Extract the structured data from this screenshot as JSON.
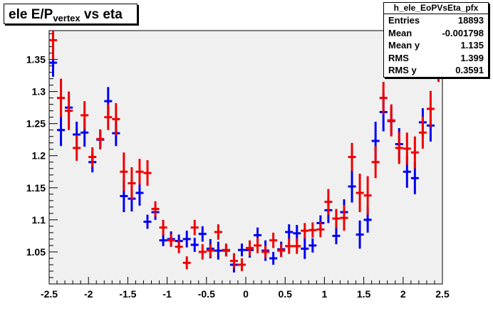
{
  "title": {
    "main": "ele E/P",
    "sub": "vertex",
    "rest": " vs eta"
  },
  "stats": {
    "name": "h_ele_EoPVsEta_pfx",
    "rows": [
      {
        "key": "Entries",
        "value": "18893"
      },
      {
        "key": "Mean",
        "value": "-0.001798"
      },
      {
        "key": "Mean y",
        "value": "1.135"
      },
      {
        "key": "RMS",
        "value": "1.399"
      },
      {
        "key": "RMS y",
        "value": "0.3591"
      }
    ]
  },
  "chart_data": {
    "type": "scatter",
    "title": "ele E/Pvertex vs eta",
    "xlim": [
      -2.5,
      2.5
    ],
    "ylim": [
      1.0,
      1.395
    ],
    "xticks": [
      -2.5,
      -2,
      -1.5,
      -1,
      -0.5,
      0,
      0.5,
      1,
      1.5,
      2,
      2.5
    ],
    "yticks": [
      1.05,
      1.1,
      1.15,
      1.2,
      1.25,
      1.3,
      1.35
    ],
    "xtick_labels": [
      "-2.5",
      "-2",
      "-1.5",
      "-1",
      "-0.5",
      "0",
      "0.5",
      "1",
      "1.5",
      "2",
      "2.5"
    ],
    "ytick_labels": [
      "1.05",
      "1.1",
      "1.15",
      "1.2",
      "1.25",
      "1.3",
      "1.35"
    ],
    "colors": {
      "series_a": "#0000ee",
      "series_b": "#ee0000",
      "frame_bg": "#f0f0f0"
    },
    "series": [
      {
        "color": "#0000ee",
        "points": [
          {
            "x": -2.45,
            "y": 1.345,
            "err": 0.022
          },
          {
            "x": -2.35,
            "y": 1.24,
            "err": 0.025
          },
          {
            "x": -2.25,
            "y": 1.275,
            "err": 0.018
          },
          {
            "x": -2.15,
            "y": 1.233,
            "err": 0.02
          },
          {
            "x": -2.05,
            "y": 1.236,
            "err": 0.022
          },
          {
            "x": -1.95,
            "y": 1.19,
            "err": 0.016
          },
          {
            "x": -1.85,
            "y": 1.225,
            "err": 0.015
          },
          {
            "x": -1.75,
            "y": 1.285,
            "err": 0.022
          },
          {
            "x": -1.65,
            "y": 1.235,
            "err": 0.02
          },
          {
            "x": -1.55,
            "y": 1.137,
            "err": 0.025
          },
          {
            "x": -1.45,
            "y": 1.133,
            "err": 0.02
          },
          {
            "x": -1.35,
            "y": 1.142,
            "err": 0.02
          },
          {
            "x": -1.25,
            "y": 1.097,
            "err": 0.011
          },
          {
            "x": -1.15,
            "y": 1.112,
            "err": 0.012
          },
          {
            "x": -1.05,
            "y": 1.068,
            "err": 0.009
          },
          {
            "x": -0.95,
            "y": 1.07,
            "err": 0.012
          },
          {
            "x": -0.85,
            "y": 1.067,
            "err": 0.01
          },
          {
            "x": -0.75,
            "y": 1.07,
            "err": 0.013
          },
          {
            "x": -0.65,
            "y": 1.061,
            "err": 0.011
          },
          {
            "x": -0.55,
            "y": 1.078,
            "err": 0.012
          },
          {
            "x": -0.45,
            "y": 1.055,
            "err": 0.015
          },
          {
            "x": -0.35,
            "y": 1.052,
            "err": 0.014
          },
          {
            "x": -0.25,
            "y": 1.052,
            "err": 0.009
          },
          {
            "x": -0.15,
            "y": 1.03,
            "err": 0.012
          },
          {
            "x": -0.05,
            "y": 1.053,
            "err": 0.01
          },
          {
            "x": 0.05,
            "y": 1.053,
            "err": 0.012
          },
          {
            "x": 0.15,
            "y": 1.076,
            "err": 0.012
          },
          {
            "x": 0.25,
            "y": 1.052,
            "err": 0.016
          },
          {
            "x": 0.35,
            "y": 1.04,
            "err": 0.01
          },
          {
            "x": 0.45,
            "y": 1.054,
            "err": 0.012
          },
          {
            "x": 0.55,
            "y": 1.081,
            "err": 0.012
          },
          {
            "x": 0.65,
            "y": 1.079,
            "err": 0.013
          },
          {
            "x": 0.75,
            "y": 1.055,
            "err": 0.016
          },
          {
            "x": 0.85,
            "y": 1.06,
            "err": 0.011
          },
          {
            "x": 0.95,
            "y": 1.095,
            "err": 0.012
          },
          {
            "x": 1.05,
            "y": 1.115,
            "err": 0.02
          },
          {
            "x": 1.15,
            "y": 1.075,
            "err": 0.013
          },
          {
            "x": 1.25,
            "y": 1.112,
            "err": 0.02
          },
          {
            "x": 1.35,
            "y": 1.152,
            "err": 0.025
          },
          {
            "x": 1.45,
            "y": 1.077,
            "err": 0.022
          },
          {
            "x": 1.55,
            "y": 1.1,
            "err": 0.02
          },
          {
            "x": 1.65,
            "y": 1.223,
            "err": 0.03
          },
          {
            "x": 1.75,
            "y": 1.268,
            "err": 0.03
          },
          {
            "x": 1.85,
            "y": 1.254,
            "err": 0.022
          },
          {
            "x": 1.95,
            "y": 1.218,
            "err": 0.025
          },
          {
            "x": 2.05,
            "y": 1.175,
            "err": 0.025
          },
          {
            "x": 2.15,
            "y": 1.165,
            "err": 0.025
          },
          {
            "x": 2.25,
            "y": 1.252,
            "err": 0.022
          },
          {
            "x": 2.35,
            "y": 1.247,
            "err": 0.025
          }
        ]
      },
      {
        "color": "#ee0000",
        "points": [
          {
            "x": -2.45,
            "y": 1.38,
            "err": 0.03
          },
          {
            "x": -2.35,
            "y": 1.29,
            "err": 0.03
          },
          {
            "x": -2.25,
            "y": 1.27,
            "err": 0.03
          },
          {
            "x": -2.15,
            "y": 1.212,
            "err": 0.02
          },
          {
            "x": -2.05,
            "y": 1.263,
            "err": 0.022
          },
          {
            "x": -1.95,
            "y": 1.198,
            "err": 0.015
          },
          {
            "x": -1.85,
            "y": 1.226,
            "err": 0.015
          },
          {
            "x": -1.75,
            "y": 1.26,
            "err": 0.02
          },
          {
            "x": -1.65,
            "y": 1.257,
            "err": 0.025
          },
          {
            "x": -1.55,
            "y": 1.175,
            "err": 0.03
          },
          {
            "x": -1.45,
            "y": 1.157,
            "err": 0.025
          },
          {
            "x": -1.35,
            "y": 1.175,
            "err": 0.02
          },
          {
            "x": -1.25,
            "y": 1.173,
            "err": 0.02
          },
          {
            "x": -1.15,
            "y": 1.117,
            "err": 0.012
          },
          {
            "x": -1.05,
            "y": 1.088,
            "err": 0.012
          },
          {
            "x": -0.95,
            "y": 1.068,
            "err": 0.01
          },
          {
            "x": -0.85,
            "y": 1.058,
            "err": 0.01
          },
          {
            "x": -0.75,
            "y": 1.033,
            "err": 0.01
          },
          {
            "x": -0.65,
            "y": 1.088,
            "err": 0.012
          },
          {
            "x": -0.55,
            "y": 1.05,
            "err": 0.012
          },
          {
            "x": -0.45,
            "y": 1.052,
            "err": 0.01
          },
          {
            "x": -0.35,
            "y": 1.081,
            "err": 0.012
          },
          {
            "x": -0.25,
            "y": 1.053,
            "err": 0.01
          },
          {
            "x": -0.15,
            "y": 1.036,
            "err": 0.012
          },
          {
            "x": -0.05,
            "y": 1.03,
            "err": 0.01
          },
          {
            "x": 0.05,
            "y": 1.056,
            "err": 0.012
          },
          {
            "x": 0.15,
            "y": 1.06,
            "err": 0.012
          },
          {
            "x": 0.25,
            "y": 1.05,
            "err": 0.01
          },
          {
            "x": 0.35,
            "y": 1.068,
            "err": 0.012
          },
          {
            "x": 0.45,
            "y": 1.052,
            "err": 0.01
          },
          {
            "x": 0.55,
            "y": 1.059,
            "err": 0.012
          },
          {
            "x": 0.65,
            "y": 1.059,
            "err": 0.012
          },
          {
            "x": 0.75,
            "y": 1.083,
            "err": 0.012
          },
          {
            "x": 0.85,
            "y": 1.084,
            "err": 0.012
          },
          {
            "x": 0.95,
            "y": 1.085,
            "err": 0.012
          },
          {
            "x": 1.05,
            "y": 1.128,
            "err": 0.02
          },
          {
            "x": 1.15,
            "y": 1.102,
            "err": 0.015
          },
          {
            "x": 1.25,
            "y": 1.103,
            "err": 0.02
          },
          {
            "x": 1.35,
            "y": 1.198,
            "err": 0.022
          },
          {
            "x": 1.45,
            "y": 1.142,
            "err": 0.03
          },
          {
            "x": 1.55,
            "y": 1.138,
            "err": 0.03
          },
          {
            "x": 1.65,
            "y": 1.19,
            "err": 0.025
          },
          {
            "x": 1.75,
            "y": 1.29,
            "err": 0.025
          },
          {
            "x": 1.85,
            "y": 1.255,
            "err": 0.025
          },
          {
            "x": 1.95,
            "y": 1.212,
            "err": 0.025
          },
          {
            "x": 2.05,
            "y": 1.211,
            "err": 0.025
          },
          {
            "x": 2.15,
            "y": 1.205,
            "err": 0.025
          },
          {
            "x": 2.25,
            "y": 1.236,
            "err": 0.025
          },
          {
            "x": 2.35,
            "y": 1.273,
            "err": 0.028
          },
          {
            "x": 2.45,
            "y": 1.34,
            "err": 0.025
          }
        ]
      }
    ]
  }
}
